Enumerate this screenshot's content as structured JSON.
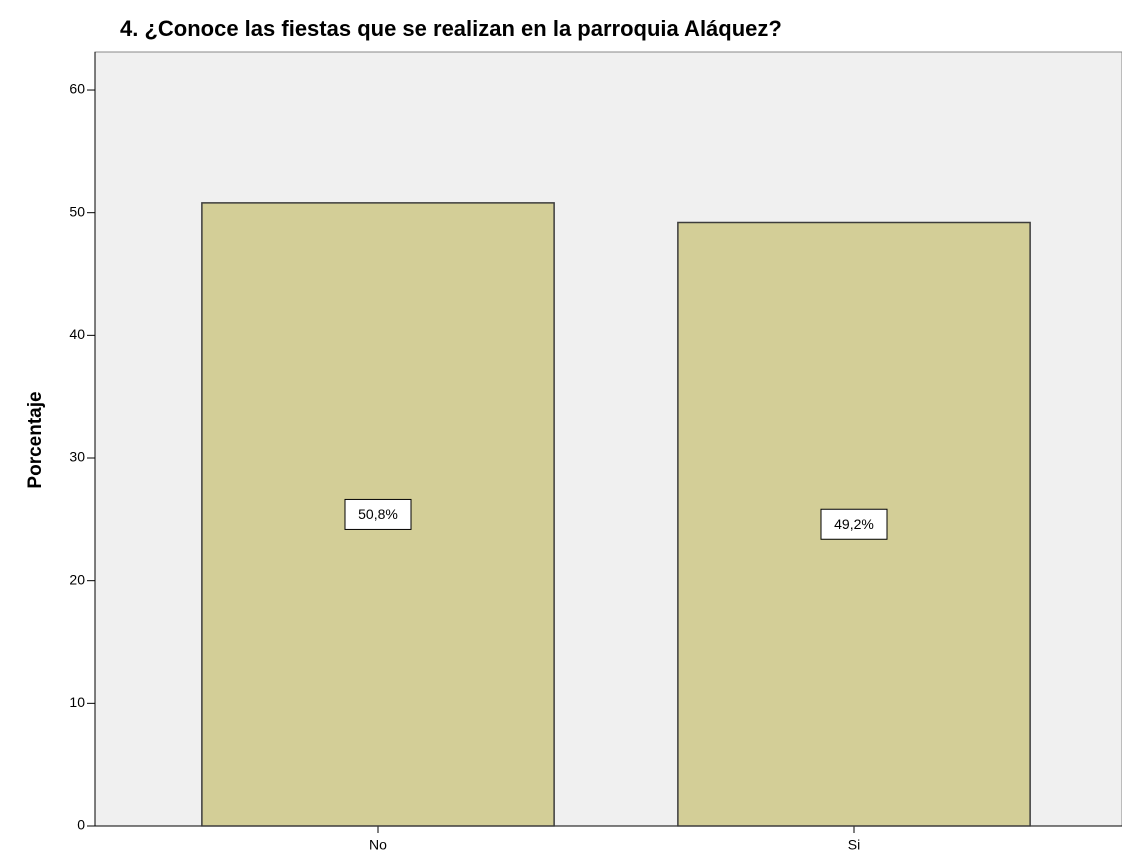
{
  "chart_data": {
    "type": "bar",
    "title": "4.  ¿Conoce las fiestas que se realizan en la parroquia Aláquez?",
    "y_label": "Porcentaje",
    "categories": [
      "No",
      "Si"
    ],
    "values": [
      50.8,
      49.2
    ],
    "value_labels": [
      "50,8%",
      "49,2%"
    ],
    "color": "#d3ce97",
    "ylim": [
      0,
      63.1
    ],
    "yticks": [
      0,
      10,
      20,
      30,
      40,
      50,
      60
    ],
    "grid": false
  }
}
